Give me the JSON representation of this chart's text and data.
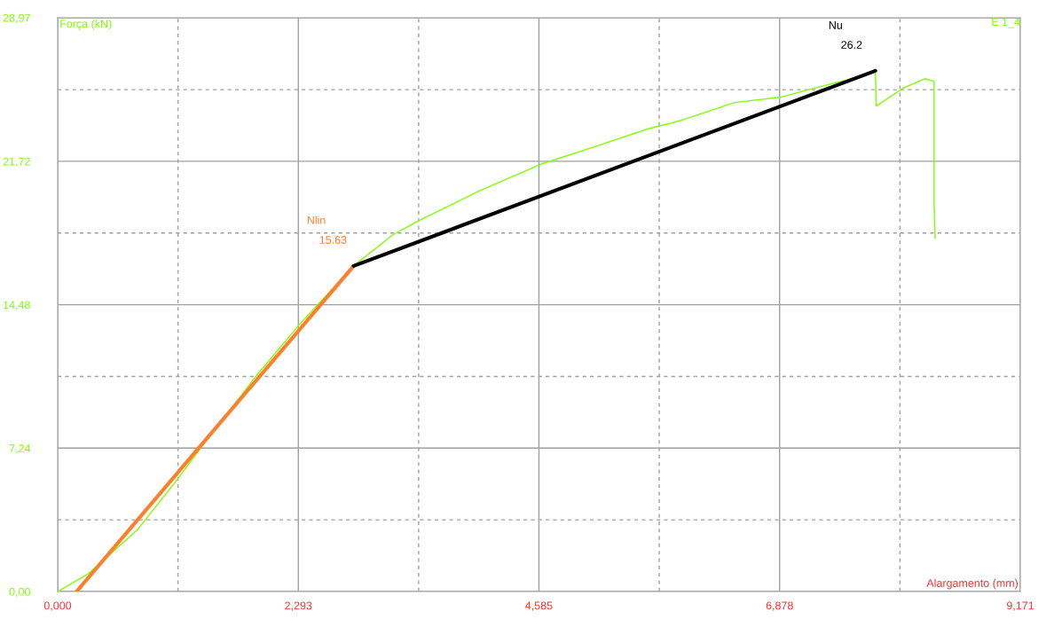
{
  "chart_data": {
    "type": "line",
    "xlabel": "Alargamento (mm)",
    "ylabel": "Força (kN)",
    "xlim": [
      0,
      9.171
    ],
    "ylim": [
      0,
      28.97
    ],
    "xticks": [
      {
        "value": 0,
        "label": "0,000"
      },
      {
        "value": 1.1465,
        "label": null
      },
      {
        "value": 2.293,
        "label": "2,293"
      },
      {
        "value": 3.439,
        "label": null
      },
      {
        "value": 4.585,
        "label": "4,585"
      },
      {
        "value": 5.7315,
        "label": null
      },
      {
        "value": 6.878,
        "label": "6,878"
      },
      {
        "value": 8.0245,
        "label": null
      },
      {
        "value": 9.171,
        "label": "9,171"
      }
    ],
    "yticks": [
      {
        "value": 0,
        "label": "0,00"
      },
      {
        "value": 3.62,
        "label": null
      },
      {
        "value": 7.24,
        "label": "7,24"
      },
      {
        "value": 10.86,
        "label": null
      },
      {
        "value": 14.48,
        "label": "14,48"
      },
      {
        "value": 18.1,
        "label": null
      },
      {
        "value": 21.72,
        "label": "21,72"
      },
      {
        "value": 25.34,
        "label": null
      },
      {
        "value": 28.97,
        "label": "28,97"
      }
    ],
    "grid": true,
    "legend": false,
    "marker": "none",
    "line_style": "solid",
    "series": [
      {
        "name": "E 1_4",
        "color": "#80ff00",
        "x": [
          0,
          0.29,
          0.76,
          1.14,
          1.39,
          1.89,
          2.3,
          2.82,
          3.19,
          3.44,
          4.02,
          4.6,
          5.12,
          5.62,
          5.95,
          6.45,
          6.89,
          7.17,
          7.5,
          7.79,
          7.8,
          8.05,
          8.26,
          8.35,
          8.35,
          8.36
        ],
        "values": [
          0,
          0.89,
          3.12,
          5.66,
          7.44,
          10.87,
          13.46,
          16.44,
          18.0,
          18.72,
          20.23,
          21.57,
          22.46,
          23.35,
          23.8,
          24.69,
          24.96,
          25.36,
          25.8,
          26.29,
          24.51,
          25.4,
          25.89,
          25.76,
          19.61,
          17.83
        ]
      },
      {
        "name": "Nlin",
        "color": "#ff7f2a",
        "x": [
          0.18,
          2.82
        ],
        "values": [
          0,
          16.44
        ]
      },
      {
        "name": "Nu",
        "color": "#000000",
        "x": [
          2.82,
          7.79
        ],
        "values": [
          16.44,
          26.29
        ]
      }
    ],
    "annotations": [
      {
        "text": "15.63",
        "x": 2.82,
        "y": 16.44
      },
      {
        "text": "26.2",
        "x": 7.79,
        "y": 26.29
      }
    ]
  }
}
